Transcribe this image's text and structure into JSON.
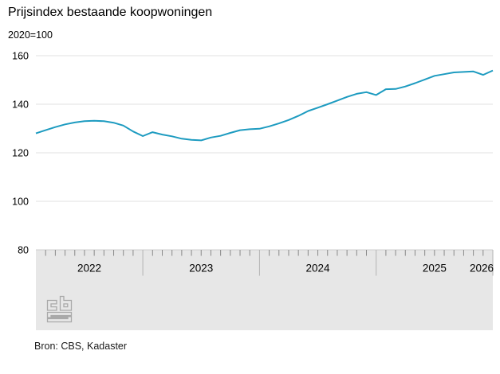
{
  "header": {
    "title": "Prijsindex bestaande koopwoningen",
    "subtitle": "2020=100"
  },
  "source": {
    "label": "Bron: CBS, Kadaster"
  },
  "logo": {
    "name": "cbs-logo"
  },
  "colors": {
    "line": "#1d9bc0",
    "grid": "#e0e0e0",
    "band_bg": "#e7e7e7",
    "band_edge": "#cccccc",
    "tick_minor": "#8a8a8a",
    "tick_major": "#b3b3b3",
    "text": "#000000"
  },
  "chart_data": {
    "type": "line",
    "title": "Prijsindex bestaande koopwoningen",
    "unit_note": "2020=100",
    "frequency": "monthly",
    "start_month": "2022-01",
    "end_month": "2025-12",
    "ylim": [
      80,
      160
    ],
    "yticks": [
      160,
      140,
      120,
      100,
      80
    ],
    "x_year_labels": [
      "2022",
      "2023",
      "2024",
      "2025",
      "2026"
    ],
    "grid": true,
    "legend": "none",
    "series": [
      {
        "name": "Prijsindex bestaande koopwoningen (2020=100)",
        "values": [
          128.0,
          129.3,
          130.6,
          131.7,
          132.5,
          133.0,
          133.2,
          133.0,
          132.4,
          131.2,
          128.8,
          126.9,
          128.5,
          127.5,
          126.8,
          125.8,
          125.3,
          125.1,
          126.3,
          127.0,
          128.2,
          129.3,
          129.7,
          129.9,
          130.9,
          132.1,
          133.5,
          135.2,
          137.2,
          138.6,
          140.0,
          141.5,
          143.0,
          144.3,
          145.0,
          143.8,
          146.2,
          146.3,
          147.3,
          148.7,
          150.2,
          151.7,
          152.4,
          153.1,
          153.3,
          153.5,
          152.1,
          153.9
        ]
      }
    ]
  }
}
